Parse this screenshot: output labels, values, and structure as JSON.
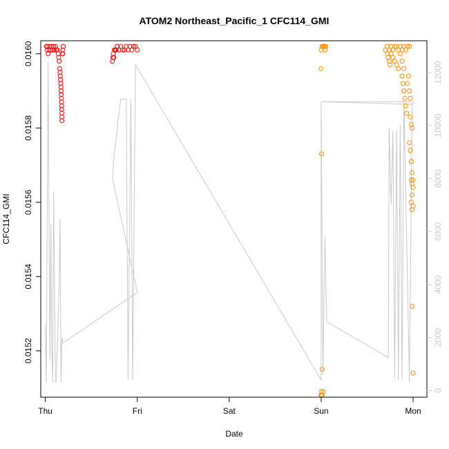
{
  "chart_data": {
    "type": "scatter",
    "title": "ATOM2 Northeast_Pacific_1 CFC114_GMI",
    "xlabel": "Date",
    "ylabel": "CFC114_GMI",
    "xlim": [
      -0.05,
      4.15
    ],
    "ylim": [
      0.015075,
      0.016035
    ],
    "x_ticks": [
      {
        "value": 0,
        "label": "Thu"
      },
      {
        "value": 1,
        "label": "Fri"
      },
      {
        "value": 2,
        "label": "Sat"
      },
      {
        "value": 3,
        "label": "Sun"
      },
      {
        "value": 4,
        "label": "Mon"
      }
    ],
    "y_ticks": [
      {
        "value": 0.0152,
        "label": "0.0152"
      },
      {
        "value": 0.0154,
        "label": "0.0154"
      },
      {
        "value": 0.0156,
        "label": "0.0156"
      },
      {
        "value": 0.0158,
        "label": "0.0158"
      },
      {
        "value": 0.016,
        "label": "0.0160"
      }
    ],
    "y2_ticks": [
      {
        "value": 0,
        "label": "0"
      },
      {
        "value": 2000,
        "label": "2000"
      },
      {
        "value": 4000,
        "label": "4000"
      },
      {
        "value": 6000,
        "label": "6000"
      },
      {
        "value": 8000,
        "label": "8000"
      },
      {
        "value": 10000,
        "label": "10000"
      },
      {
        "value": 12000,
        "label": "12000"
      }
    ],
    "y2lim": [
      -250,
      13200
    ],
    "grid": false,
    "colors": {
      "series_red": "#ff0000",
      "series_orange": "#ff8c00",
      "altitude_line": "#c8c8c8",
      "axis": "#000000"
    },
    "series": [
      {
        "color": "#ff0000",
        "marker": "open-circle",
        "points": [
          [
            0.01,
            0.01602
          ],
          [
            0.02,
            0.01601
          ],
          [
            0.025,
            0.01602
          ],
          [
            0.03,
            0.016
          ],
          [
            0.04,
            0.01601
          ],
          [
            0.05,
            0.01602
          ],
          [
            0.06,
            0.01601
          ],
          [
            0.07,
            0.01602
          ],
          [
            0.08,
            0.01601
          ],
          [
            0.09,
            0.01602
          ],
          [
            0.1,
            0.01601
          ],
          [
            0.11,
            0.01602
          ],
          [
            0.12,
            0.01601
          ],
          [
            0.13,
            0.01601
          ],
          [
            0.14,
            0.016
          ],
          [
            0.145,
            0.01599
          ],
          [
            0.15,
            0.01598
          ],
          [
            0.155,
            0.01596
          ],
          [
            0.16,
            0.01595
          ],
          [
            0.162,
            0.01594
          ],
          [
            0.165,
            0.01593
          ],
          [
            0.168,
            0.01592
          ],
          [
            0.17,
            0.01591
          ],
          [
            0.172,
            0.0159
          ],
          [
            0.174,
            0.01589
          ],
          [
            0.175,
            0.01588
          ],
          [
            0.176,
            0.01587
          ],
          [
            0.177,
            0.01586
          ],
          [
            0.178,
            0.01585
          ],
          [
            0.179,
            0.01584
          ],
          [
            0.18,
            0.01583
          ],
          [
            0.181,
            0.01582
          ],
          [
            0.185,
            0.016
          ],
          [
            0.19,
            0.01601
          ],
          [
            0.19,
            0.016
          ],
          [
            0.195,
            0.01602
          ],
          [
            0.73,
            0.01598
          ],
          [
            0.735,
            0.01599
          ],
          [
            0.74,
            0.016
          ],
          [
            0.745,
            0.01599
          ],
          [
            0.75,
            0.01601
          ],
          [
            0.76,
            0.01601
          ],
          [
            0.77,
            0.01601
          ],
          [
            0.78,
            0.01602
          ],
          [
            0.8,
            0.01601
          ],
          [
            0.82,
            0.01602
          ],
          [
            0.84,
            0.01601
          ],
          [
            0.86,
            0.01601
          ],
          [
            0.88,
            0.01602
          ],
          [
            0.9,
            0.01601
          ],
          [
            0.92,
            0.01602
          ],
          [
            0.94,
            0.01601
          ],
          [
            0.96,
            0.01602
          ],
          [
            0.98,
            0.01602
          ],
          [
            1.0,
            0.01601
          ]
        ]
      },
      {
        "color": "#ff8c00",
        "marker": "open-circle",
        "points": [
          [
            3.0,
            0.01601
          ],
          [
            3.0,
            0.01596
          ],
          [
            3.01,
            0.01602
          ],
          [
            3.02,
            0.01602
          ],
          [
            3.03,
            0.01602
          ],
          [
            3.04,
            0.01602
          ],
          [
            3.045,
            0.01601
          ],
          [
            3.05,
            0.01602
          ],
          [
            3.005,
            0.01573
          ],
          [
            3.01,
            0.01515
          ],
          [
            3.0,
            0.01509
          ],
          [
            3.0,
            0.01508
          ],
          [
            3.0,
            0.01508
          ],
          [
            3.005,
            0.01508
          ],
          [
            3.01,
            0.01508
          ],
          [
            3.02,
            0.01509
          ],
          [
            3.7,
            0.01601
          ],
          [
            3.72,
            0.01602
          ],
          [
            3.74,
            0.01601
          ],
          [
            3.76,
            0.01602
          ],
          [
            3.78,
            0.01601
          ],
          [
            3.8,
            0.01602
          ],
          [
            3.82,
            0.01602
          ],
          [
            3.84,
            0.01601
          ],
          [
            3.86,
            0.01602
          ],
          [
            3.88,
            0.01601
          ],
          [
            3.9,
            0.01602
          ],
          [
            3.92,
            0.01601
          ],
          [
            3.94,
            0.01602
          ],
          [
            3.96,
            0.01602
          ],
          [
            3.72,
            0.016
          ],
          [
            3.73,
            0.01599
          ],
          [
            3.74,
            0.01598
          ],
          [
            3.75,
            0.01597
          ],
          [
            3.76,
            0.016
          ],
          [
            3.78,
            0.01599
          ],
          [
            3.8,
            0.01598
          ],
          [
            3.82,
            0.01597
          ],
          [
            3.84,
            0.01596
          ],
          [
            3.86,
            0.016
          ],
          [
            3.88,
            0.01598
          ],
          [
            3.9,
            0.01596
          ],
          [
            3.88,
            0.01594
          ],
          [
            3.89,
            0.01592
          ],
          [
            3.9,
            0.0159
          ],
          [
            3.91,
            0.01588
          ],
          [
            3.92,
            0.01586
          ],
          [
            3.93,
            0.01584
          ],
          [
            3.94,
            0.01592
          ],
          [
            3.95,
            0.01594
          ],
          [
            3.96,
            0.0159
          ],
          [
            3.97,
            0.01588
          ],
          [
            3.97,
            0.01583
          ],
          [
            3.98,
            0.01581
          ],
          [
            3.99,
            0.0158
          ],
          [
            3.96,
            0.01576
          ],
          [
            3.97,
            0.01574
          ],
          [
            3.98,
            0.01571
          ],
          [
            3.99,
            0.01568
          ],
          [
            3.98,
            0.01566
          ],
          [
            3.99,
            0.01565
          ],
          [
            4.0,
            0.01564
          ],
          [
            3.99,
            0.01562
          ],
          [
            3.98,
            0.0156
          ],
          [
            4.0,
            0.01559
          ],
          [
            3.99,
            0.01558
          ],
          [
            4.0,
            0.01566
          ],
          [
            3.99,
            0.01532
          ],
          [
            4.0,
            0.01514
          ]
        ]
      }
    ],
    "altitude_series": {
      "axis": "right",
      "color": "#c8c8c8",
      "points": [
        [
          0.0,
          2500
        ],
        [
          0.01,
          300
        ],
        [
          0.03,
          12400
        ],
        [
          0.05,
          1200
        ],
        [
          0.06,
          6300
        ],
        [
          0.07,
          1600
        ],
        [
          0.08,
          300
        ],
        [
          0.09,
          7500
        ],
        [
          0.11,
          300
        ],
        [
          0.12,
          400
        ],
        [
          0.15,
          4000
        ],
        [
          0.16,
          6500
        ],
        [
          0.17,
          300
        ],
        [
          0.18,
          2000
        ],
        [
          0.19,
          1800
        ],
        [
          1.0,
          3700
        ],
        [
          0.73,
          8000
        ],
        [
          0.75,
          9000
        ],
        [
          0.77,
          9500
        ],
        [
          0.79,
          10200
        ],
        [
          0.8,
          10400
        ],
        [
          0.82,
          11000
        ],
        [
          0.84,
          11000
        ],
        [
          0.86,
          11000
        ],
        [
          0.88,
          11000
        ],
        [
          0.9,
          400
        ],
        [
          0.93,
          11000
        ],
        [
          0.95,
          400
        ],
        [
          0.98,
          12300
        ],
        [
          3.0,
          400
        ],
        [
          3.0,
          10900
        ],
        [
          3.02,
          600
        ],
        [
          3.04,
          5800
        ],
        [
          3.06,
          2600
        ],
        [
          3.73,
          1250
        ],
        [
          3.74,
          9900
        ],
        [
          3.76,
          7000
        ],
        [
          3.78,
          9800
        ],
        [
          3.8,
          500
        ],
        [
          3.82,
          9800
        ],
        [
          3.84,
          400
        ],
        [
          3.86,
          10000
        ],
        [
          3.88,
          400
        ],
        [
          3.9,
          11000
        ],
        [
          3.94,
          4000
        ],
        [
          3.96,
          300
        ],
        [
          3.99,
          10900
        ],
        [
          3.0,
          10900
        ],
        [
          3.99,
          10800
        ]
      ]
    }
  }
}
